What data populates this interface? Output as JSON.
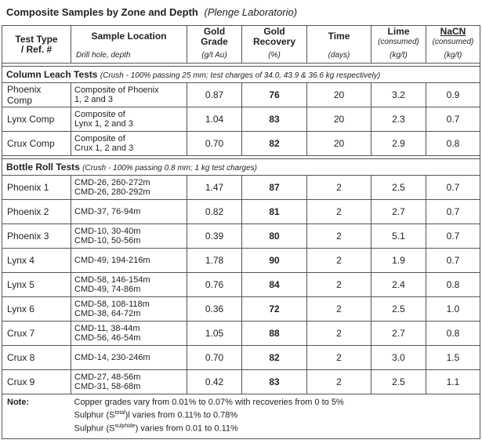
{
  "title": {
    "main": "Composite Samples by Zone and Depth",
    "lab": "(Plenge Laboratorio)"
  },
  "headers": {
    "test_type": [
      "Test Type",
      "/ Ref. #"
    ],
    "sample_location": "Sample Location",
    "sample_location_sub": "Drill hole, depth",
    "gold_grade": [
      "Gold",
      "Grade"
    ],
    "gold_grade_unit": "(g/t Au)",
    "gold_recovery": [
      "Gold",
      "Recovery"
    ],
    "gold_recovery_unit": "(%)",
    "time": "Time",
    "time_unit": "(days)",
    "lime": "Lime",
    "lime_sub": "(consumed)",
    "lime_unit": "(kg/t)",
    "nacn": "NaCN",
    "nacn_sub": "(consumed)",
    "nacn_unit": "(kg/t)"
  },
  "sections": [
    {
      "title": "Column Leach Tests",
      "crush": "(Crush - 100% passing 25 mm; test charges of 34.0, 43.9 & 36.6 kg respectively)",
      "rows": [
        {
          "test": [
            "Phoenix",
            "Comp"
          ],
          "sample": [
            "Composite of Phoenix",
            "1, 2 and 3"
          ],
          "grade": "0.87",
          "recovery": "76",
          "time": "20",
          "lime": "3.2",
          "nacn": "0.9"
        },
        {
          "test": [
            "Lynx  Comp"
          ],
          "sample": [
            "Composite of",
            "Lynx 1, 2 and 3"
          ],
          "grade": "1.04",
          "recovery": "83",
          "time": "20",
          "lime": "2.3",
          "nacn": "0.7"
        },
        {
          "test": [
            "Crux Comp"
          ],
          "sample": [
            "Composite of",
            "Crux 1, 2 and 3"
          ],
          "grade": "0.70",
          "recovery": "82",
          "time": "20",
          "lime": "2.9",
          "nacn": "0.8"
        }
      ]
    },
    {
      "title": "Bottle Roll Tests",
      "crush": "(Crush - 100% passing 0.8 mm; 1 kg test charges)",
      "rows": [
        {
          "test": [
            "Phoenix 1"
          ],
          "sample": [
            "CMD-26,  260-272m",
            "CMD-26,  280-292m"
          ],
          "grade": "1.47",
          "recovery": "87",
          "time": "2",
          "lime": "2.5",
          "nacn": "0.7"
        },
        {
          "test": [
            "Phoenix 2"
          ],
          "sample": [
            "CMD-37,  76-94m"
          ],
          "grade": "0.82",
          "recovery": "81",
          "time": "2",
          "lime": "2.7",
          "nacn": "0.7"
        },
        {
          "test": [
            "Phoenix 3"
          ],
          "sample": [
            "CMD-10,  30-40m",
            "CMD-10,  50-56m"
          ],
          "grade": "0.39",
          "recovery": "80",
          "time": "2",
          "lime": "5.1",
          "nacn": "0.7"
        },
        {
          "test": [
            "Lynx 4"
          ],
          "sample": [
            "CMD-49,  194-216m"
          ],
          "grade": "1.78",
          "recovery": "90",
          "time": "2",
          "lime": "1.9",
          "nacn": "0.7"
        },
        {
          "test": [
            "Lynx 5"
          ],
          "sample": [
            "CMD-58,  146-154m",
            "CMD-49,  74-86m"
          ],
          "grade": "0.76",
          "recovery": "84",
          "time": "2",
          "lime": "2.4",
          "nacn": "0.8"
        },
        {
          "test": [
            "Lynx 6"
          ],
          "sample": [
            "CMD-58, 108-118m",
            "CMD-38, 64-72m"
          ],
          "grade": "0.36",
          "recovery": "72",
          "time": "2",
          "lime": "2.5",
          "nacn": "1.0"
        },
        {
          "test": [
            "Crux 7"
          ],
          "sample": [
            "CMD-11,  38-44m",
            "CMD-56,  46-54m"
          ],
          "grade": "1.05",
          "recovery": "88",
          "time": "2",
          "lime": "2.7",
          "nacn": "0.8"
        },
        {
          "test": [
            "Crux 8"
          ],
          "sample": [
            "CMD-14,  230-246m"
          ],
          "grade": "0.70",
          "recovery": "82",
          "time": "2",
          "lime": "3.0",
          "nacn": "1.5"
        },
        {
          "test": [
            "Crux 9"
          ],
          "sample": [
            "CMD-27,  48-56m",
            "CMD-31,  58-68m"
          ],
          "grade": "0.42",
          "recovery": "83",
          "time": "2",
          "lime": "2.5",
          "nacn": "1.1"
        }
      ]
    }
  ],
  "note": {
    "label": "Note:",
    "line1": "Copper grades vary from 0.01% to 0.07% with recoveries from 0 to 5%",
    "line2_pre": "Sulphur (S",
    "line2_sup": "total",
    "line2_post": ")l varies from 0.11% to 0.78%",
    "line3_pre": "Sulphur (S",
    "line3_sup": "sulphide",
    "line3_post": ") varies from 0.01 to 0.11%"
  }
}
